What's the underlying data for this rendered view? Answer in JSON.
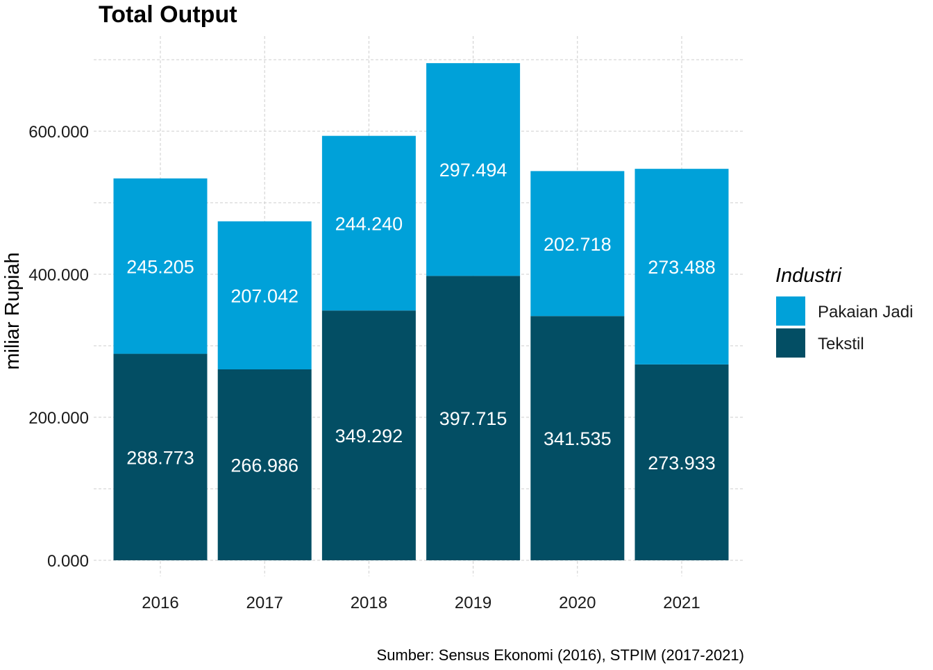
{
  "chart_data": {
    "type": "bar",
    "stacked": true,
    "title": "Total Output",
    "xlabel": "",
    "ylabel": "miliar Rupiah",
    "categories": [
      "2016",
      "2017",
      "2018",
      "2019",
      "2020",
      "2021"
    ],
    "series": [
      {
        "name": "Tekstil",
        "color": "#034e64",
        "values": [
          288773,
          266986,
          349292,
          397715,
          341535,
          273933
        ],
        "labels": [
          "288.773",
          "266.986",
          "349.292",
          "397.715",
          "341.535",
          "273.933"
        ]
      },
      {
        "name": "Pakaian Jadi",
        "color": "#00a1d9",
        "values": [
          245205,
          207042,
          244240,
          297494,
          202718,
          273488
        ],
        "labels": [
          "245.205",
          "207.042",
          "244.240",
          "297.494",
          "202.718",
          "273.488"
        ]
      }
    ],
    "ylim": [
      0,
      700000
    ],
    "yticks": [
      0,
      200000,
      400000,
      600000
    ],
    "ytick_labels": [
      "0.000",
      "200.000",
      "400.000",
      "600.000"
    ],
    "grid": true,
    "legend": {
      "title": "Industri",
      "placement": "right",
      "order": [
        "Pakaian Jadi",
        "Tekstil"
      ]
    },
    "caption": "Sumber: Sensus Ekonomi (2016), STPIM (2017-2021)"
  }
}
